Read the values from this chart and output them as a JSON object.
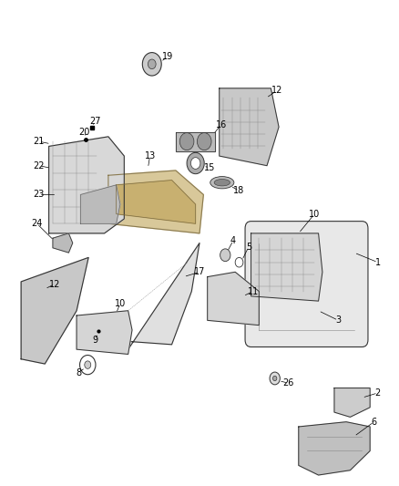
{
  "bg_color": "#ffffff",
  "line_color": "#333333",
  "gray": "#888888",
  "figsize": [
    4.38,
    5.33
  ],
  "dpi": 100
}
